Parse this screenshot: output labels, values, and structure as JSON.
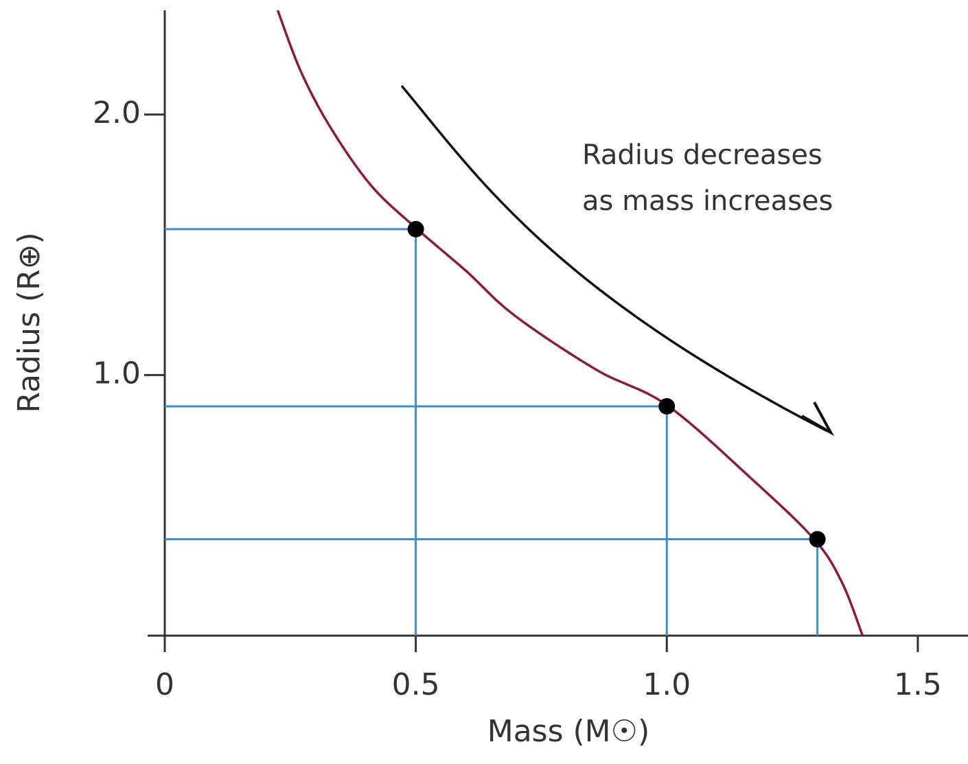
{
  "chart_data": {
    "type": "line",
    "xlabel": "Mass (M☉)",
    "ylabel": "Radius (R⊕)",
    "annotation": [
      "Radius decreases",
      "as mass increases"
    ],
    "xlim": [
      0,
      1.6
    ],
    "ylim": [
      0,
      2.4
    ],
    "xticks": [
      0,
      0.5,
      {
        "value": 1,
        "label": "1.0"
      },
      1.5
    ],
    "yticks": [
      {
        "value": 1,
        "label": "1.0"
      },
      {
        "value": 2,
        "label": "2.0"
      }
    ],
    "grid": false,
    "series": [
      {
        "color": "#8e1b35",
        "x": [
          0.225,
          0.27,
          0.327,
          0.41,
          0.5,
          0.6,
          0.696,
          0.86,
          1.0,
          1.17,
          1.295,
          1.35,
          1.39
        ],
        "values": [
          2.4,
          2.17,
          1.96,
          1.73,
          1.565,
          1.4,
          1.23,
          1.02,
          0.885,
          0.6,
          0.367,
          0.2,
          0
        ]
      },
      {
        "color": "#000000",
        "guide_color": "#3a8fd0",
        "x": [
          0.5,
          1.0,
          1.3
        ],
        "values": [
          1.56,
          0.88,
          0.37
        ]
      }
    ]
  }
}
